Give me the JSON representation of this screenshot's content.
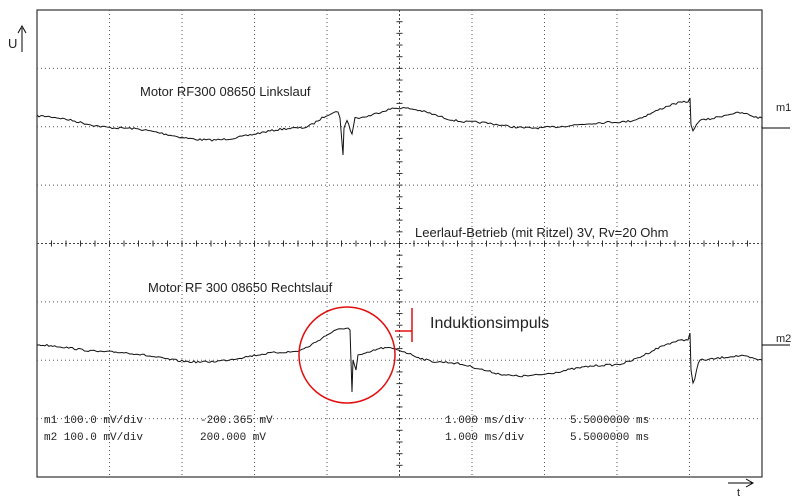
{
  "labels": {
    "u_axis": "U",
    "t_axis": "t",
    "trace1": "Motor RF300 08650 Linkslauf",
    "trace2": "Motor RF 300 08650 Rechtslauf",
    "m1": "m1",
    "m2": "m2",
    "condition": "Leerlauf-Betrieb (mit Ritzel) 3V, Rv=20 Ohm",
    "annotation": "Induktionsimpuls"
  },
  "readouts": [
    [
      "m1 100.0 mV/div",
      "-200.365 mV",
      "1.000 ms/div",
      "5.5000000 ms"
    ],
    [
      "m2 100.0 mV/div",
      "200.000 mV",
      "1.000 ms/div",
      "5.5000000 ms"
    ]
  ]
}
